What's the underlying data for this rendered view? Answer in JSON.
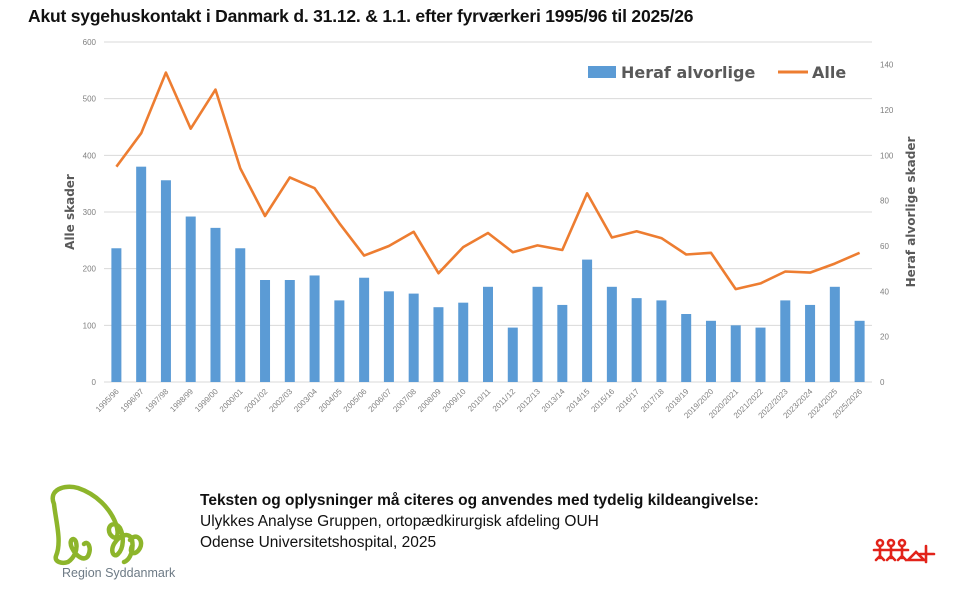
{
  "header": {
    "title": "Akut sygehuskontakt i Danmark d. 31.12. & 1.1. efter fyrværkeri 1995/96 til 2025/26"
  },
  "chart_data": {
    "type": "bar+line",
    "title": "Akut sygehuskontakt i Danmark d. 31.12. & 1.1. efter fyrværkeri 1995/96 til 2025/26",
    "categories": [
      "1995/96",
      "1996/97",
      "1997/98",
      "1998/99",
      "1999/00",
      "2000/01",
      "2001/02",
      "2002/03",
      "2003/04",
      "2004/05",
      "2005/06",
      "2006/07",
      "2007/08",
      "2008/09",
      "2009/10",
      "2010/11",
      "2011/12",
      "2012/13",
      "2013/14",
      "2014/15",
      "2015/16",
      "2016/17",
      "2017/18",
      "2018/19",
      "2019/2020",
      "2020/2021",
      "2021/2022",
      "2022/2023",
      "2023/2024",
      "2024/2025",
      "2025/2026"
    ],
    "series": [
      {
        "name": "Heraf alvorlige",
        "type": "bar",
        "axis": "right",
        "color": "#5b9bd5",
        "values": [
          59,
          95,
          89,
          73,
          68,
          59,
          45,
          45,
          47,
          36,
          46,
          40,
          39,
          33,
          35,
          42,
          24,
          42,
          34,
          54,
          42,
          37,
          36,
          30,
          27,
          25,
          24,
          36,
          34,
          42,
          27
        ]
      },
      {
        "name": "Alle",
        "type": "line",
        "axis": "left",
        "color": "#ed7d31",
        "values": [
          380,
          439,
          546,
          447,
          516,
          377,
          293,
          361,
          342,
          280,
          223,
          240,
          265,
          192,
          238,
          263,
          229,
          241,
          233,
          333,
          255,
          266,
          254,
          225,
          228,
          164,
          174,
          195,
          193,
          209,
          228
        ]
      }
    ],
    "ylabel": "Alle skader",
    "y2label": "Heraf alvorlige skader",
    "ylim": [
      0,
      600
    ],
    "y2lim": [
      0,
      150
    ],
    "yticks": [
      "0",
      "100",
      "200",
      "300",
      "400",
      "500",
      "600"
    ],
    "y2ticks": [
      "0",
      "20",
      "40",
      "60",
      "80",
      "100",
      "120",
      "140"
    ],
    "grid": true,
    "legend": {
      "position": "top-right",
      "entries": [
        "Heraf alvorlige",
        "Alle"
      ]
    }
  },
  "footer": {
    "notice": "Teksten og oplysninger må citeres og anvendes med tydelig kildeangivelse:",
    "line1": "Ulykkes Analyse Gruppen, ortopædkirurgisk afdeling OUH",
    "line2": "Odense Universitetshospital, 2025"
  },
  "logos": {
    "region_logo_text": "Region Syddanmark",
    "region_logo_color": "#8db52b",
    "ouh_logo_color": "#e2231a"
  }
}
